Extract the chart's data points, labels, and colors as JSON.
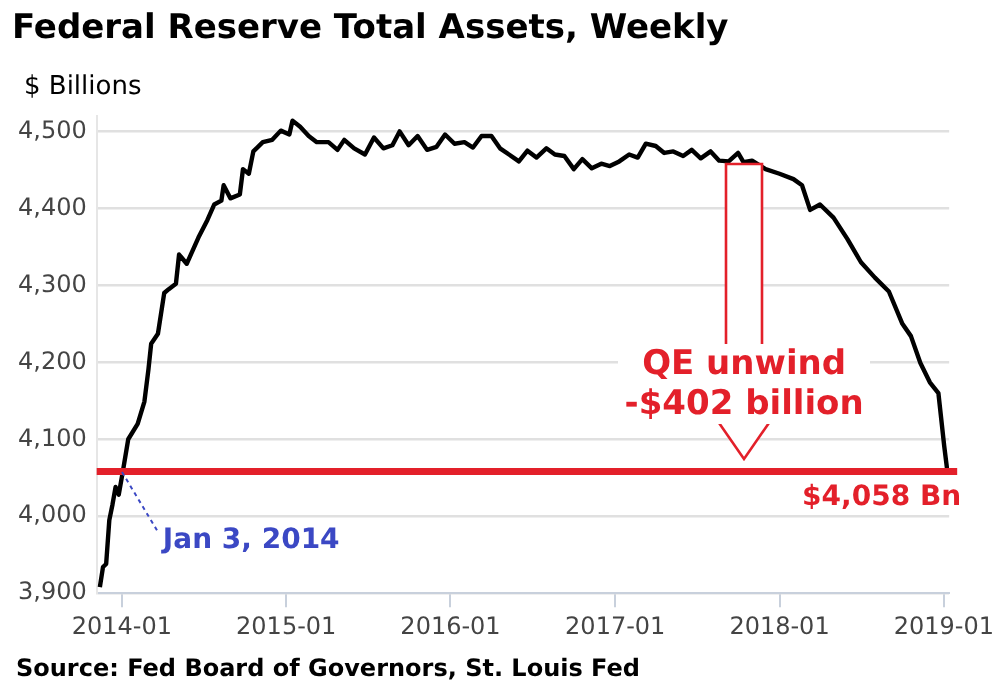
{
  "chart_data": {
    "type": "line",
    "title": "Federal Reserve Total Assets, Weekly",
    "ylabel": "$ Billions",
    "x": [
      "2013-11-13",
      "2013-11-20",
      "2013-11-27",
      "2013-12-04",
      "2013-12-11",
      "2013-12-18",
      "2013-12-25",
      "2014-01-03",
      "2014-01-15",
      "2014-02-05",
      "2014-02-20",
      "2014-03-01",
      "2014-03-07",
      "2014-03-22",
      "2014-04-05",
      "2014-04-15",
      "2014-05-01",
      "2014-05-08",
      "2014-05-25",
      "2014-06-20",
      "2014-07-10",
      "2014-07-25",
      "2014-08-10",
      "2014-08-15",
      "2014-08-30",
      "2014-09-20",
      "2014-09-27",
      "2014-10-10",
      "2014-10-20",
      "2014-11-10",
      "2014-12-01",
      "2014-12-20",
      "2015-01-08",
      "2015-01-15",
      "2015-02-01",
      "2015-02-20",
      "2015-03-10",
      "2015-04-05",
      "2015-04-25",
      "2015-05-10",
      "2015-06-01",
      "2015-06-25",
      "2015-07-15",
      "2015-08-05",
      "2015-08-25",
      "2015-09-10",
      "2015-09-30",
      "2015-10-20",
      "2015-11-10",
      "2015-12-01",
      "2015-12-20",
      "2016-01-10",
      "2016-02-01",
      "2016-02-20",
      "2016-03-10",
      "2016-04-01",
      "2016-04-20",
      "2016-05-10",
      "2016-06-01",
      "2016-06-20",
      "2016-07-10",
      "2016-08-01",
      "2016-08-20",
      "2016-09-10",
      "2016-10-01",
      "2016-10-20",
      "2016-11-10",
      "2016-12-01",
      "2016-12-20",
      "2017-01-10",
      "2017-02-01",
      "2017-02-20",
      "2017-03-10",
      "2017-04-01",
      "2017-04-20",
      "2017-05-10",
      "2017-06-01",
      "2017-06-20",
      "2017-07-10",
      "2017-08-01",
      "2017-08-20",
      "2017-09-10",
      "2017-10-01",
      "2017-10-13",
      "2017-11-01",
      "2017-12-01",
      "2018-01-01",
      "2018-02-01",
      "2018-02-20",
      "2018-03-10",
      "2018-04-01",
      "2018-05-01",
      "2018-06-01",
      "2018-07-01",
      "2018-08-01",
      "2018-09-01",
      "2018-10-01",
      "2018-10-20",
      "2018-11-10",
      "2018-12-01",
      "2018-12-20",
      "2019-01-02",
      "2019-01-09"
    ],
    "series": [
      {
        "color": "#000000",
        "values": [
          3908,
          3934,
          3938,
          3995,
          4015,
          4038,
          4028,
          4058,
          4100,
          4120,
          4149,
          4191,
          4224,
          4237,
          4290,
          4295,
          4302,
          4340,
          4328,
          4362,
          4385,
          4405,
          4410,
          4430,
          4413,
          4418,
          4451,
          4445,
          4474,
          4486,
          4489,
          4501,
          4496,
          4514,
          4506,
          4494,
          4486,
          4486,
          4476,
          4489,
          4478,
          4470,
          4492,
          4478,
          4482,
          4500,
          4482,
          4494,
          4476,
          4480,
          4496,
          4484,
          4486,
          4479,
          4494,
          4494,
          4478,
          4470,
          4461,
          4475,
          4466,
          4478,
          4470,
          4468,
          4451,
          4464,
          4452,
          4458,
          4455,
          4461,
          4470,
          4466,
          4484,
          4481,
          4472,
          4474,
          4468,
          4476,
          4465,
          4474,
          4462,
          4461,
          4472,
          4460,
          4462,
          4451,
          4445,
          4438,
          4430,
          4398,
          4405,
          4388,
          4360,
          4330,
          4310,
          4292,
          4250,
          4234,
          4199,
          4174,
          4160,
          4091,
          4058
        ]
      }
    ],
    "xlim": [
      "2013-11-06",
      "2019-01-13"
    ],
    "xticks": [
      "2014-01",
      "2015-01",
      "2016-01",
      "2017-01",
      "2018-01",
      "2019-01"
    ],
    "ylim": [
      3900,
      4520
    ],
    "yticks": [
      {
        "value": 3900,
        "label": "3,900"
      },
      {
        "value": 4000,
        "label": "4,000"
      },
      {
        "value": 4100,
        "label": "4,100"
      },
      {
        "value": 4200,
        "label": "4,200"
      },
      {
        "value": 4300,
        "label": "4,300"
      },
      {
        "value": 4400,
        "label": "4,400"
      },
      {
        "value": 4500,
        "label": "4,500"
      }
    ],
    "grid": "y",
    "legend": false,
    "marker": "none",
    "line_style": "solid",
    "ref_lines": [
      {
        "axis": "y",
        "value": 4058,
        "label": "$4,058 Bn",
        "color": "#e3202a"
      }
    ],
    "annotations": [
      {
        "text": "Jan 3, 2014",
        "x": "2014-01-03",
        "y": 4058
      },
      "QE unwind\n-$402 billion",
      "Source: Fed Board of Governors, St. Louis Fed"
    ]
  }
}
